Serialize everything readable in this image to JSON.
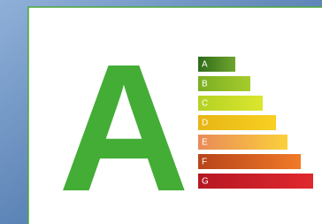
{
  "grade": "A",
  "scale": [
    "A",
    "B",
    "C",
    "D",
    "E",
    "F",
    "G"
  ]
}
